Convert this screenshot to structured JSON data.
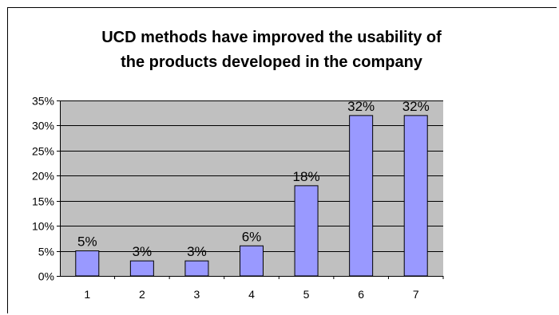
{
  "chart_data": {
    "type": "bar",
    "title": "UCD methods have improved the usability of the products developed in the company",
    "title_lines": [
      "UCD methods have improved the usability of",
      "the products developed in the company"
    ],
    "categories": [
      "1",
      "2",
      "3",
      "4",
      "5",
      "6",
      "7"
    ],
    "values": [
      5,
      3,
      3,
      6,
      18,
      32,
      32
    ],
    "data_labels": [
      "5%",
      "3%",
      "3%",
      "6%",
      "18%",
      "32%",
      "32%"
    ],
    "ylim": [
      0,
      35
    ],
    "yticks": [
      0,
      5,
      10,
      15,
      20,
      25,
      30,
      35
    ],
    "ytick_labels": [
      "0%",
      "5%",
      "10%",
      "15%",
      "20%",
      "25%",
      "30%",
      "35%"
    ],
    "xlabel": "",
    "ylabel": "",
    "grid": true,
    "legend": "none",
    "colors": {
      "bar": "#9999ff",
      "plot_background": "#c0c0c0",
      "bar_border": "#000000"
    }
  }
}
